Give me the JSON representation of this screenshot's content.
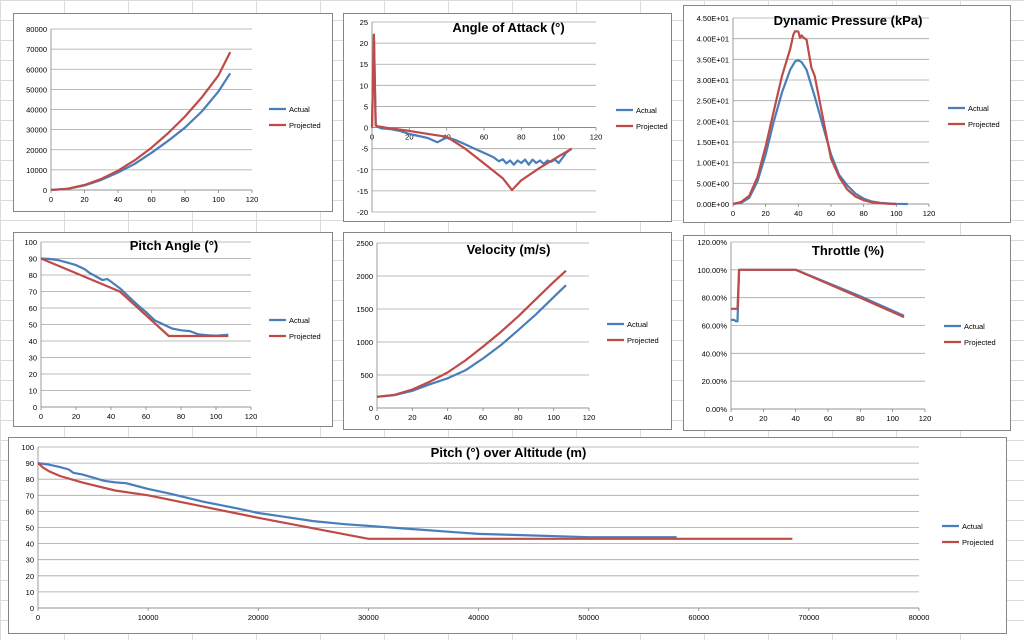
{
  "colors": {
    "actual": "#4a7ebb",
    "projected": "#be4b48",
    "grid": "#a6a6a6",
    "axis": "#868686"
  },
  "chart_data": [
    {
      "id": "altitude",
      "type": "line",
      "title": "",
      "xticks": [
        "0",
        "20",
        "40",
        "60",
        "80",
        "100",
        "120"
      ],
      "yticks": [
        "0",
        "10000",
        "20000",
        "30000",
        "40000",
        "50000",
        "60000",
        "70000",
        "80000"
      ],
      "xlim": [
        0,
        120
      ],
      "ylim": [
        0,
        80000
      ],
      "grid": "horizontal",
      "legend": "right",
      "series": [
        {
          "name": "Actual",
          "x": [
            0,
            10,
            20,
            30,
            40,
            50,
            60,
            70,
            80,
            90,
            100,
            107
          ],
          "y": [
            0,
            600,
            2300,
            5000,
            8700,
            13000,
            18500,
            24500,
            31000,
            39000,
            49000,
            58000
          ]
        },
        {
          "name": "Projected",
          "x": [
            0,
            10,
            20,
            30,
            40,
            50,
            60,
            70,
            80,
            90,
            100,
            107
          ],
          "y": [
            0,
            650,
            2500,
            5500,
            9600,
            14800,
            21000,
            28300,
            36500,
            46000,
            57000,
            68500
          ]
        }
      ]
    },
    {
      "id": "aoa",
      "type": "line",
      "title": "Angle of Attack (°)",
      "xticks": [
        "0",
        "20",
        "40",
        "60",
        "80",
        "100",
        "120"
      ],
      "yticks": [
        "-20",
        "-15",
        "-10",
        "-5",
        "0",
        "5",
        "10",
        "15",
        "20",
        "25"
      ],
      "xlim": [
        0,
        120
      ],
      "ylim": [
        -20,
        25
      ],
      "grid": "horizontal",
      "legend": "right",
      "series": [
        {
          "name": "Actual",
          "x": [
            0,
            1,
            2,
            3,
            5,
            10,
            15,
            20,
            25,
            30,
            35,
            38,
            40,
            45,
            50,
            55,
            60,
            65,
            68,
            70,
            72,
            74,
            76,
            78,
            80,
            82,
            84,
            86,
            88,
            90,
            92,
            94,
            96,
            98,
            100,
            102,
            104,
            106,
            107
          ],
          "y": [
            0,
            22,
            0.5,
            0.2,
            -0.2,
            -0.4,
            -0.8,
            -1.5,
            -2,
            -2.5,
            -3.5,
            -2.8,
            -2.3,
            -3,
            -4,
            -5,
            -6,
            -7,
            -8,
            -7.5,
            -8.5,
            -7.8,
            -8.8,
            -7.8,
            -8.4,
            -7.6,
            -8.8,
            -7.6,
            -8.4,
            -7.8,
            -8.6,
            -7.8,
            -8.1,
            -7.6,
            -8.4,
            -7.2,
            -6,
            -5.3,
            -5
          ]
        },
        {
          "name": "Projected",
          "x": [
            0,
            1,
            2,
            3,
            10,
            20,
            30,
            40,
            50,
            60,
            70,
            75,
            80,
            90,
            100,
            107
          ],
          "y": [
            0,
            22,
            0.5,
            0.3,
            -0.2,
            -0.8,
            -1.5,
            -2.2,
            -5,
            -8.5,
            -12,
            -14.8,
            -12.5,
            -9.5,
            -6.8,
            -5
          ]
        }
      ]
    },
    {
      "id": "dynpress",
      "type": "line",
      "title": "Dynamic Pressure (kPa)",
      "xticks": [
        "0",
        "20",
        "40",
        "60",
        "80",
        "100",
        "120"
      ],
      "yticks": [
        "0.00E+00",
        "5.00E+00",
        "1.00E+01",
        "1.50E+01",
        "2.00E+01",
        "2.50E+01",
        "3.00E+01",
        "3.50E+01",
        "4.00E+01",
        "4.50E+01"
      ],
      "xlim": [
        0,
        120
      ],
      "ylim": [
        0,
        45
      ],
      "grid": "horizontal",
      "legend": "right",
      "series": [
        {
          "name": "Actual",
          "x": [
            0,
            5,
            10,
            15,
            20,
            25,
            30,
            35,
            38,
            40,
            42,
            45,
            50,
            55,
            60,
            65,
            70,
            75,
            80,
            85,
            90,
            95,
            100,
            107
          ],
          "y": [
            0,
            0.3,
            1.5,
            5.5,
            12,
            20,
            27,
            32.5,
            34.5,
            34.8,
            34.3,
            32.5,
            26,
            19,
            12,
            7,
            4.5,
            2.5,
            1.3,
            0.6,
            0.3,
            0.15,
            0.05,
            0
          ]
        },
        {
          "name": "Projected",
          "x": [
            0,
            5,
            10,
            15,
            20,
            25,
            30,
            35,
            37,
            38,
            40,
            41,
            42,
            43,
            45,
            48,
            50,
            55,
            58,
            60,
            65,
            70,
            75,
            80,
            85,
            90,
            95,
            100
          ],
          "y": [
            0,
            0.5,
            2,
            6.5,
            14,
            22.5,
            31,
            37.5,
            41,
            41.8,
            41.7,
            40.2,
            40.8,
            40.3,
            39.8,
            33,
            31,
            21,
            15,
            11,
            6.5,
            3.5,
            1.8,
            0.9,
            0.4,
            0.2,
            0.05,
            0
          ]
        }
      ]
    },
    {
      "id": "pitch",
      "type": "line",
      "title": "Pitch Angle (°)",
      "xticks": [
        "0",
        "20",
        "40",
        "60",
        "80",
        "100",
        "120"
      ],
      "yticks": [
        "0",
        "10",
        "20",
        "30",
        "40",
        "50",
        "60",
        "70",
        "80",
        "90",
        "100"
      ],
      "xlim": [
        0,
        120
      ],
      "ylim": [
        0,
        100
      ],
      "grid": "horizontal",
      "legend": "right",
      "series": [
        {
          "name": "Actual",
          "x": [
            0,
            5,
            10,
            15,
            20,
            25,
            28,
            30,
            35,
            38,
            40,
            45,
            50,
            55,
            60,
            65,
            70,
            75,
            80,
            85,
            90,
            95,
            100,
            107
          ],
          "y": [
            90,
            89.7,
            89,
            87.5,
            86,
            83.5,
            81,
            80,
            77,
            77.5,
            76,
            72,
            67,
            62,
            57.5,
            52.5,
            50,
            47.5,
            46.5,
            46,
            44,
            43.5,
            43.2,
            43.8
          ]
        },
        {
          "name": "Projected",
          "x": [
            0,
            45,
            73,
            107
          ],
          "y": [
            90,
            70,
            43,
            43
          ]
        }
      ]
    },
    {
      "id": "velocity",
      "type": "line",
      "title": "Velocity (m/s)",
      "xticks": [
        "0",
        "20",
        "40",
        "60",
        "80",
        "100",
        "120"
      ],
      "yticks": [
        "0",
        "500",
        "1000",
        "1500",
        "2000",
        "2500"
      ],
      "xlim": [
        0,
        120
      ],
      "ylim": [
        0,
        2500
      ],
      "grid": "horizontal",
      "legend": "right",
      "series": [
        {
          "name": "Actual",
          "x": [
            0,
            10,
            20,
            30,
            40,
            50,
            60,
            70,
            80,
            90,
            100,
            107
          ],
          "y": [
            170,
            195,
            260,
            360,
            450,
            570,
            750,
            950,
            1180,
            1420,
            1680,
            1860
          ]
        },
        {
          "name": "Projected",
          "x": [
            0,
            10,
            20,
            30,
            40,
            50,
            60,
            70,
            80,
            90,
            100,
            107
          ],
          "y": [
            170,
            200,
            280,
            400,
            540,
            720,
            930,
            1150,
            1390,
            1650,
            1910,
            2080
          ]
        }
      ]
    },
    {
      "id": "throttle",
      "type": "line",
      "title": "Throttle (%)",
      "xticks": [
        "0",
        "20",
        "40",
        "60",
        "80",
        "100",
        "120"
      ],
      "yticks": [
        "0.00%",
        "20.00%",
        "40.00%",
        "60.00%",
        "80.00%",
        "100.00%",
        "120.00%"
      ],
      "xlim": [
        0,
        120
      ],
      "ylim": [
        0,
        120
      ],
      "grid": "horizontal",
      "legend": "right",
      "series": [
        {
          "name": "Actual",
          "x": [
            0,
            2,
            3,
            4,
            5,
            6,
            40,
            80,
            107
          ],
          "y": [
            64,
            64,
            63,
            63,
            100,
            100,
            100,
            81,
            67
          ]
        },
        {
          "name": "Projected",
          "x": [
            0,
            3,
            4,
            5,
            6,
            40,
            80,
            107
          ],
          "y": [
            72,
            72,
            72,
            100,
            100,
            100,
            80,
            66
          ]
        }
      ]
    },
    {
      "id": "pitchalt",
      "type": "line",
      "title": "Pitch (°) over Altitude (m)",
      "xticks": [
        "0",
        "10000",
        "20000",
        "30000",
        "40000",
        "50000",
        "60000",
        "70000",
        "80000"
      ],
      "yticks": [
        "0",
        "10",
        "20",
        "30",
        "40",
        "50",
        "60",
        "70",
        "80",
        "90",
        "100"
      ],
      "xlim": [
        0,
        80000
      ],
      "ylim": [
        0,
        100
      ],
      "grid": "horizontal",
      "legend": "right",
      "series": [
        {
          "name": "Actual",
          "x": [
            0,
            500,
            1000,
            2000,
            2800,
            3200,
            4000,
            5000,
            6000,
            7000,
            8000,
            10000,
            12000,
            15000,
            18000,
            20000,
            22000,
            25000,
            28000,
            30000,
            32000,
            35000,
            38000,
            40000,
            45000,
            50000,
            55000,
            58000
          ],
          "y": [
            90,
            89.5,
            89,
            87.5,
            86,
            84,
            83,
            81,
            79,
            78,
            77.5,
            74,
            71,
            66,
            62,
            59,
            57,
            54,
            52,
            51,
            50,
            48.5,
            47,
            46,
            45,
            44,
            44,
            44
          ]
        },
        {
          "name": "Projected",
          "x": [
            0,
            500,
            1000,
            2000,
            4000,
            7000,
            10000,
            15000,
            20000,
            25000,
            30000,
            40000,
            50000,
            60000,
            68500
          ],
          "y": [
            90,
            87,
            85,
            82,
            78,
            73,
            70,
            63,
            56,
            49.5,
            43,
            43,
            43,
            43,
            43
          ]
        }
      ]
    }
  ]
}
